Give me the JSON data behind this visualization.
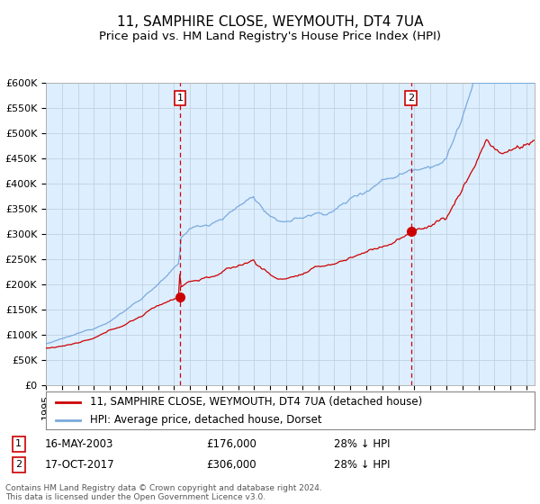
{
  "title": "11, SAMPHIRE CLOSE, WEYMOUTH, DT4 7UA",
  "subtitle": "Price paid vs. HM Land Registry's House Price Index (HPI)",
  "legend_property_label": "11, SAMPHIRE CLOSE, WEYMOUTH, DT4 7UA (detached house)",
  "legend_hpi_label": "HPI: Average price, detached house, Dorset",
  "property_color": "#cc0000",
  "hpi_color": "#7aaadd",
  "background_fill": "#ddeeff",
  "ylim": [
    0,
    600000
  ],
  "yticks": [
    0,
    50000,
    100000,
    150000,
    200000,
    250000,
    300000,
    350000,
    400000,
    450000,
    500000,
    550000,
    600000
  ],
  "ytick_labels": [
    "£0",
    "£50K",
    "£100K",
    "£150K",
    "£200K",
    "£250K",
    "£300K",
    "£350K",
    "£400K",
    "£450K",
    "£500K",
    "£550K",
    "£600K"
  ],
  "transaction1_date": "16-MAY-2003",
  "transaction1_price": 176000,
  "transaction1_x": 2003.37,
  "transaction2_date": "17-OCT-2017",
  "transaction2_price": 306000,
  "transaction2_x": 2017.79,
  "footer": "Contains HM Land Registry data © Crown copyright and database right 2024.\nThis data is licensed under the Open Government Licence v3.0.",
  "title_fontsize": 11,
  "subtitle_fontsize": 9.5,
  "tick_fontsize": 8,
  "legend_fontsize": 8.5,
  "table_fontsize": 8.5
}
